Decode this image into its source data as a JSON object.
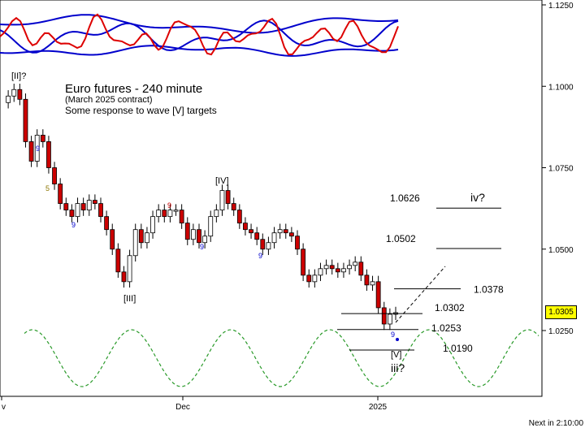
{
  "chart_data": {
    "type": "candlestick",
    "title": "Euro futures - 240 minute",
    "subtitle": "(March  2025 contract)",
    "note": "Some response to wave [V] targets",
    "y_ticks": [
      "1.1250",
      "1.1000",
      "1.0750",
      "1.0500",
      "1.0250"
    ],
    "y_tick_values": [
      1.125,
      1.1,
      1.075,
      1.05,
      1.025
    ],
    "ylim": [
      1.0057,
      1.1282
    ],
    "x_ticks": [
      "v",
      "Dec",
      "2025"
    ],
    "current_price": "1.0305",
    "wave_labels": [
      "[II]?",
      "[III]",
      "[IV]",
      "[V]",
      "iii?",
      "iv?"
    ],
    "count_labels": [
      {
        "text": "9",
        "color": "#0000cc"
      },
      {
        "text": "5",
        "color": "#8b7500"
      },
      {
        "text": "9",
        "color": "#0000cc"
      },
      {
        "text": "9",
        "color": "#cc0000"
      },
      {
        "text": "9",
        "color": "#cc0000"
      },
      {
        "text": "9",
        "color": "#0000cc"
      },
      {
        "text": "9",
        "color": "#0000cc"
      },
      {
        "text": "9",
        "color": "#0000cc"
      }
    ],
    "targets": [
      {
        "label": "1.0626",
        "value": 1.0626
      },
      {
        "label": "1.0502",
        "value": 1.0502
      },
      {
        "label": "1.0378",
        "value": 1.0378
      },
      {
        "label": "1.0302",
        "value": 1.0302
      },
      {
        "label": "1.0253",
        "value": 1.0253
      },
      {
        "label": "1.0190",
        "value": 1.019
      }
    ],
    "price_path": [
      1.095,
      1.097,
      1.099,
      1.096,
      1.083,
      1.077,
      1.085,
      1.083,
      1.075,
      1.07,
      1.064,
      1.062,
      1.06,
      1.064,
      1.062,
      1.065,
      1.064,
      1.06,
      1.056,
      1.05,
      1.043,
      1.04,
      1.048,
      1.056,
      1.052,
      1.055,
      1.06,
      1.062,
      1.06,
      1.062,
      1.062,
      1.058,
      1.053,
      1.056,
      1.052,
      1.054,
      1.06,
      1.062,
      1.068,
      1.064,
      1.062,
      1.058,
      1.056,
      1.055,
      1.053,
      1.05,
      1.052,
      1.055,
      1.056,
      1.055,
      1.054,
      1.05,
      1.042,
      1.04,
      1.042,
      1.044,
      1.045,
      1.044,
      1.043,
      1.044,
      1.045,
      1.046,
      1.042,
      1.039,
      1.04,
      1.032,
      1.027,
      1.03,
      1.0305
    ],
    "oscillator": {
      "top_band": "upper channel",
      "colors": {
        "bands": "#0000cc",
        "line": "#dd0000",
        "cycle": "#2a9a2a"
      }
    },
    "next_bar": "Next in 2:10:00"
  }
}
